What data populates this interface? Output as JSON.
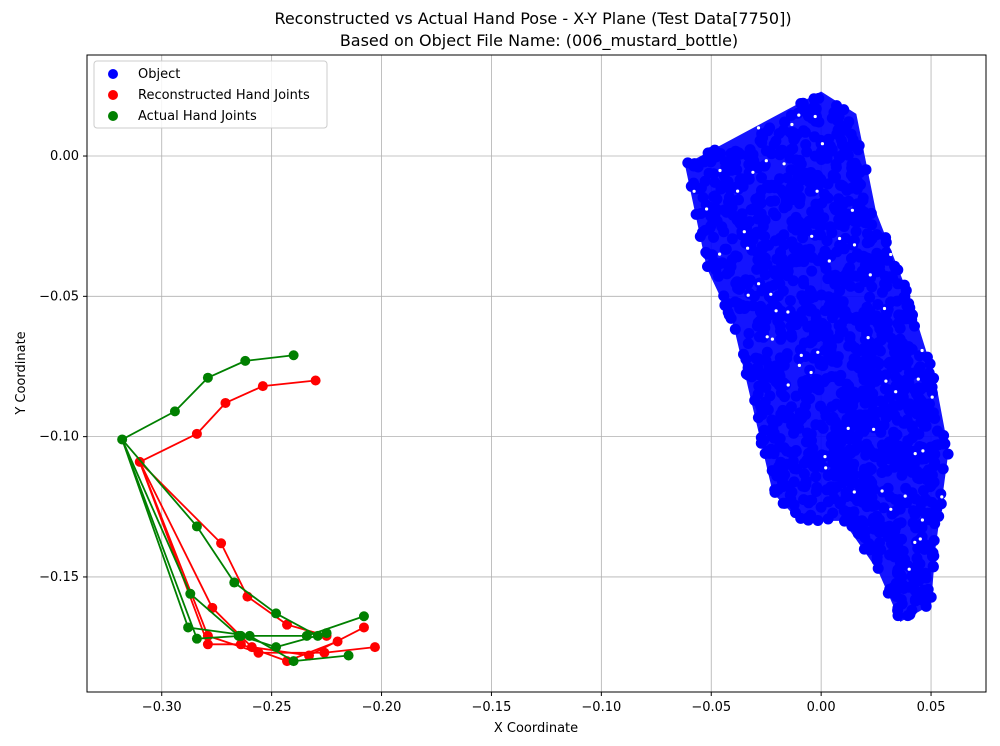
{
  "chart_data": {
    "type": "scatter",
    "title": "Reconstructed vs Actual Hand Pose - X-Y Plane (Test Data[7750])",
    "subtitle": "Based on Object File Name: (006_mustard_bottle)",
    "xlabel": "X Coordinate",
    "ylabel": "Y Coordinate",
    "xlim": [
      -0.334,
      0.075
    ],
    "ylim": [
      -0.191,
      0.036
    ],
    "x_ticks": [
      -0.3,
      -0.25,
      -0.2,
      -0.15,
      -0.1,
      -0.05,
      0.0,
      0.05
    ],
    "x_tick_labels": [
      "−0.30",
      "−0.25",
      "−0.20",
      "−0.15",
      "−0.10",
      "−0.05",
      "0.00",
      "0.05"
    ],
    "y_ticks": [
      0.0,
      -0.05,
      -0.1,
      -0.15
    ],
    "y_tick_labels": [
      "0.00",
      "−0.05",
      "−0.10",
      "−0.15"
    ],
    "grid": true,
    "legend_position": "top-left",
    "legend": [
      "Object",
      "Reconstructed Hand Joints",
      "Actual Hand Joints"
    ],
    "colors": {
      "object": "#0000ff",
      "reconstructed": "#ff0000",
      "actual": "#008000"
    },
    "object_region": {
      "name": "Object",
      "description_polygon": [
        [
          -0.062,
          -0.003
        ],
        [
          0.0,
          0.023
        ],
        [
          0.016,
          0.015
        ],
        [
          0.025,
          -0.02
        ],
        [
          0.04,
          -0.05
        ],
        [
          0.052,
          -0.08
        ],
        [
          0.058,
          -0.105
        ],
        [
          0.052,
          -0.14
        ],
        [
          0.05,
          -0.16
        ],
        [
          0.036,
          -0.166
        ],
        [
          0.026,
          -0.148
        ],
        [
          0.01,
          -0.13
        ],
        [
          -0.01,
          -0.13
        ],
        [
          -0.022,
          -0.12
        ],
        [
          -0.034,
          -0.08
        ],
        [
          -0.04,
          -0.06
        ],
        [
          -0.052,
          -0.04
        ]
      ]
    },
    "series": [
      {
        "name": "Reconstructed Hand Joints",
        "points": [
          [
            -0.31,
            -0.109
          ],
          [
            -0.284,
            -0.099
          ],
          [
            -0.271,
            -0.088
          ],
          [
            -0.254,
            -0.082
          ],
          [
            -0.23,
            -0.08
          ],
          [
            -0.273,
            -0.138
          ],
          [
            -0.261,
            -0.157
          ],
          [
            -0.243,
            -0.167
          ],
          [
            -0.225,
            -0.171
          ],
          [
            -0.277,
            -0.161
          ],
          [
            -0.259,
            -0.175
          ],
          [
            -0.233,
            -0.178
          ],
          [
            -0.208,
            -0.168
          ],
          [
            -0.279,
            -0.171
          ],
          [
            -0.256,
            -0.177
          ],
          [
            -0.226,
            -0.177
          ],
          [
            -0.203,
            -0.175
          ],
          [
            -0.279,
            -0.174
          ],
          [
            -0.264,
            -0.174
          ],
          [
            -0.243,
            -0.18
          ],
          [
            -0.22,
            -0.173
          ]
        ],
        "edges": [
          [
            0,
            1
          ],
          [
            1,
            2
          ],
          [
            2,
            3
          ],
          [
            3,
            4
          ],
          [
            0,
            5
          ],
          [
            5,
            6
          ],
          [
            6,
            7
          ],
          [
            7,
            8
          ],
          [
            0,
            9
          ],
          [
            9,
            10
          ],
          [
            10,
            11
          ],
          [
            11,
            12
          ],
          [
            0,
            13
          ],
          [
            13,
            14
          ],
          [
            14,
            15
          ],
          [
            15,
            16
          ],
          [
            0,
            17
          ],
          [
            17,
            18
          ],
          [
            18,
            19
          ],
          [
            19,
            20
          ]
        ]
      },
      {
        "name": "Actual Hand Joints",
        "points": [
          [
            -0.318,
            -0.101
          ],
          [
            -0.294,
            -0.091
          ],
          [
            -0.279,
            -0.079
          ],
          [
            -0.262,
            -0.073
          ],
          [
            -0.24,
            -0.071
          ],
          [
            -0.284,
            -0.132
          ],
          [
            -0.267,
            -0.152
          ],
          [
            -0.248,
            -0.163
          ],
          [
            -0.229,
            -0.171
          ],
          [
            -0.287,
            -0.156
          ],
          [
            -0.265,
            -0.171
          ],
          [
            -0.234,
            -0.171
          ],
          [
            -0.208,
            -0.164
          ],
          [
            -0.288,
            -0.168
          ],
          [
            -0.26,
            -0.171
          ],
          [
            -0.24,
            -0.18
          ],
          [
            -0.215,
            -0.178
          ],
          [
            -0.284,
            -0.172
          ],
          [
            -0.264,
            -0.171
          ],
          [
            -0.248,
            -0.175
          ],
          [
            -0.225,
            -0.17
          ]
        ],
        "edges": [
          [
            0,
            1
          ],
          [
            1,
            2
          ],
          [
            2,
            3
          ],
          [
            3,
            4
          ],
          [
            0,
            5
          ],
          [
            5,
            6
          ],
          [
            6,
            7
          ],
          [
            7,
            8
          ],
          [
            0,
            9
          ],
          [
            9,
            10
          ],
          [
            10,
            11
          ],
          [
            11,
            12
          ],
          [
            0,
            13
          ],
          [
            13,
            14
          ],
          [
            14,
            15
          ],
          [
            15,
            16
          ],
          [
            0,
            17
          ],
          [
            17,
            18
          ],
          [
            18,
            19
          ],
          [
            19,
            20
          ]
        ]
      }
    ]
  }
}
